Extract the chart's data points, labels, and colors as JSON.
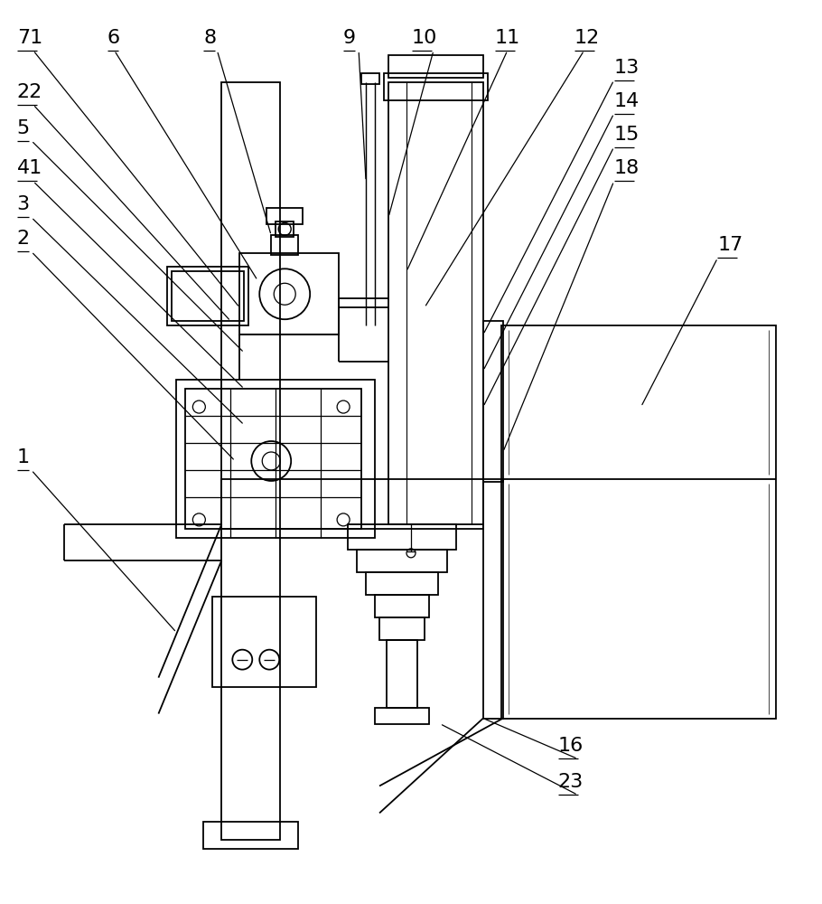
{
  "bg_color": "#ffffff",
  "line_color": "#000000",
  "lw": 1.3,
  "fig_width": 9.1,
  "fig_height": 10.0
}
